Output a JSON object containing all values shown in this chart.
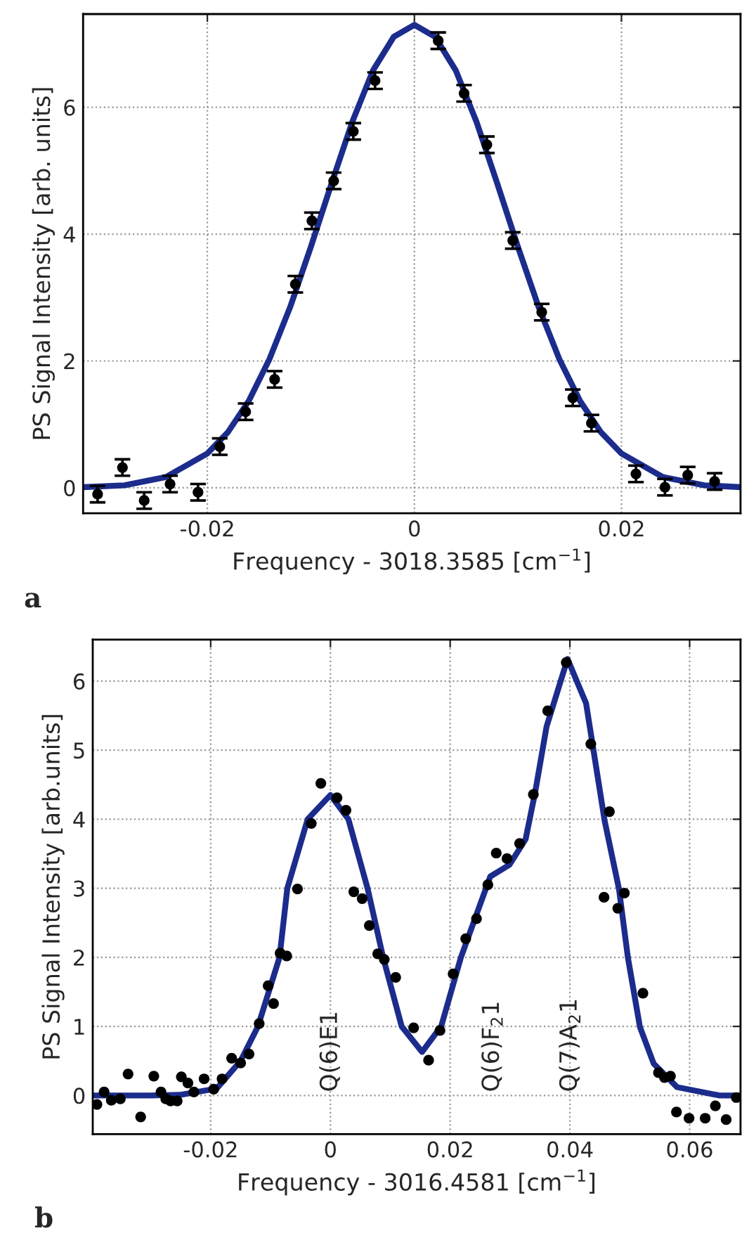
{
  "chart_data": [
    {
      "type": "scatter",
      "xlabel": "Frequency - 3018.3585 [cm$^{−1}$]",
      "ylabel": "PS Signal Intensity [arb. units]",
      "annotations": [
        "a"
      ],
      "xlim": [
        -0.032,
        0.0315
      ],
      "ylim": [
        -0.4,
        7.47
      ],
      "xticks": [
        -0.02,
        0,
        0.02
      ],
      "yticks": [
        0,
        2,
        4,
        6
      ],
      "grid": true,
      "series": [
        {
          "marker": "circle",
          "color": "#000000",
          "x": [
            -0.0306,
            -0.0282,
            -0.0261,
            -0.0236,
            -0.0209,
            -0.0188,
            -0.0163,
            -0.0135,
            -0.0115,
            -0.0099,
            -0.0078,
            -0.0059,
            -0.0038,
            0.0023,
            0.0048,
            0.007,
            0.0095,
            0.0123,
            0.0153,
            0.0171,
            0.0214,
            0.0242,
            0.0264,
            0.029
          ],
          "values": [
            -0.1,
            0.32,
            -0.2,
            0.06,
            -0.07,
            0.65,
            1.2,
            1.71,
            3.21,
            4.21,
            4.84,
            5.62,
            6.42,
            7.05,
            6.22,
            5.41,
            3.9,
            2.77,
            1.42,
            1.02,
            0.22,
            0.01,
            0.2,
            0.1
          ],
          "errors": [
            0.13,
            0.13,
            0.13,
            0.13,
            0.13,
            0.13,
            0.13,
            0.13,
            0.13,
            0.13,
            0.13,
            0.13,
            0.13,
            0.13,
            0.13,
            0.13,
            0.13,
            0.13,
            0.13,
            0.13,
            0.13,
            0.13,
            0.13,
            0.13
          ]
        },
        {
          "type": "line",
          "color": "#1c2c8c",
          "line_style": "solid",
          "x": [
            -0.032,
            -0.028,
            -0.024,
            -0.02,
            -0.018,
            -0.016,
            -0.014,
            -0.012,
            -0.01,
            -0.008,
            -0.006,
            -0.004,
            -0.002,
            0,
            0.002,
            0.004,
            0.006,
            0.008,
            0.01,
            0.012,
            0.014,
            0.016,
            0.018,
            0.02,
            0.024,
            0.028,
            0.0315
          ],
          "values": [
            0.01,
            0.04,
            0.17,
            0.54,
            0.88,
            1.37,
            2.03,
            2.85,
            3.8,
            4.8,
            5.77,
            6.58,
            7.11,
            7.3,
            7.11,
            6.58,
            5.77,
            4.8,
            3.8,
            2.85,
            2.03,
            1.37,
            0.88,
            0.54,
            0.17,
            0.04,
            0.01
          ]
        }
      ]
    },
    {
      "type": "scatter",
      "xlabel": "Frequency - 3016.4581 [cm$^{−1}$]",
      "ylabel": "PS Signal Intensity [arb.units]",
      "annotations": [
        "b",
        "Q(6)E1",
        "Q(6)F$_{2}$1",
        "Q(7)A$_{2}$1"
      ],
      "xlim": [
        -0.0397,
        0.0685
      ],
      "ylim": [
        -0.56,
        6.6
      ],
      "xticks": [
        -0.02,
        0,
        0.02,
        0.04,
        0.06
      ],
      "yticks": [
        0,
        1,
        2,
        3,
        4,
        5,
        6
      ],
      "grid": true,
      "series": [
        {
          "marker": "circle",
          "color": "#000000",
          "x": [
            -0.039,
            -0.0378,
            -0.0366,
            -0.0351,
            -0.0338,
            -0.0317,
            -0.0295,
            -0.0283,
            -0.0275,
            -0.0267,
            -0.0256,
            -0.0249,
            -0.0238,
            -0.0228,
            -0.0211,
            -0.0195,
            -0.0181,
            -0.0165,
            -0.015,
            -0.0136,
            -0.0119,
            -0.0104,
            -0.0095,
            -0.0084,
            -0.0073,
            -0.0055,
            -0.0032,
            -0.0016,
            0.0011,
            0.0026,
            0.0039,
            0.0053,
            0.0065,
            0.0079,
            0.009,
            0.0109,
            0.0139,
            0.0164,
            0.0183,
            0.0205,
            0.0226,
            0.0244,
            0.0263,
            0.0277,
            0.0295,
            0.0316,
            0.0339,
            0.0363,
            0.0394,
            0.0435,
            0.0466,
            0.0457,
            0.048,
            0.0491,
            0.0522,
            0.0548,
            0.0558,
            0.0568,
            0.0578,
            0.0599,
            0.0626,
            0.0643,
            0.0661,
            0.0678
          ],
          "values": [
            -0.13,
            0.05,
            -0.07,
            -0.05,
            0.31,
            -0.31,
            0.28,
            0.05,
            -0.05,
            -0.08,
            -0.08,
            0.27,
            0.18,
            0.05,
            0.24,
            0.09,
            0.24,
            0.54,
            0.47,
            0.6,
            1.04,
            1.59,
            1.33,
            2.06,
            2.02,
            2.99,
            3.94,
            4.52,
            4.31,
            4.13,
            2.95,
            2.85,
            2.46,
            2.05,
            1.97,
            1.71,
            0.98,
            0.51,
            0.94,
            1.76,
            2.27,
            2.56,
            3.05,
            3.51,
            3.43,
            3.65,
            4.36,
            5.57,
            6.27,
            5.09,
            4.11,
            2.87,
            2.71,
            2.93,
            1.48,
            0.33,
            0.26,
            0.28,
            -0.24,
            -0.33,
            -0.33,
            -0.15,
            -0.35,
            -0.03
          ]
        },
        {
          "type": "line",
          "color": "#1c2c8c",
          "line_style": "solid",
          "x": [
            -0.0397,
            -0.03,
            -0.025,
            -0.019,
            -0.015,
            -0.0121,
            -0.0085,
            -0.0072,
            -0.0038,
            0.0,
            0.003,
            0.0062,
            0.0088,
            0.0119,
            0.0153,
            0.0185,
            0.0218,
            0.0267,
            0.0299,
            0.0326,
            0.0342,
            0.0361,
            0.0396,
            0.0427,
            0.0458,
            0.0482,
            0.0497,
            0.0517,
            0.054,
            0.0579,
            0.065,
            0.0685
          ],
          "values": [
            0.0,
            0.0,
            0.01,
            0.1,
            0.5,
            1.0,
            2.0,
            3.0,
            4.0,
            4.35,
            4.0,
            3.0,
            2.0,
            1.0,
            0.63,
            1.0,
            2.0,
            3.17,
            3.34,
            3.71,
            4.39,
            5.34,
            6.32,
            5.68,
            3.98,
            2.99,
            1.99,
            0.99,
            0.46,
            0.12,
            0.0,
            0.0
          ]
        }
      ]
    }
  ]
}
